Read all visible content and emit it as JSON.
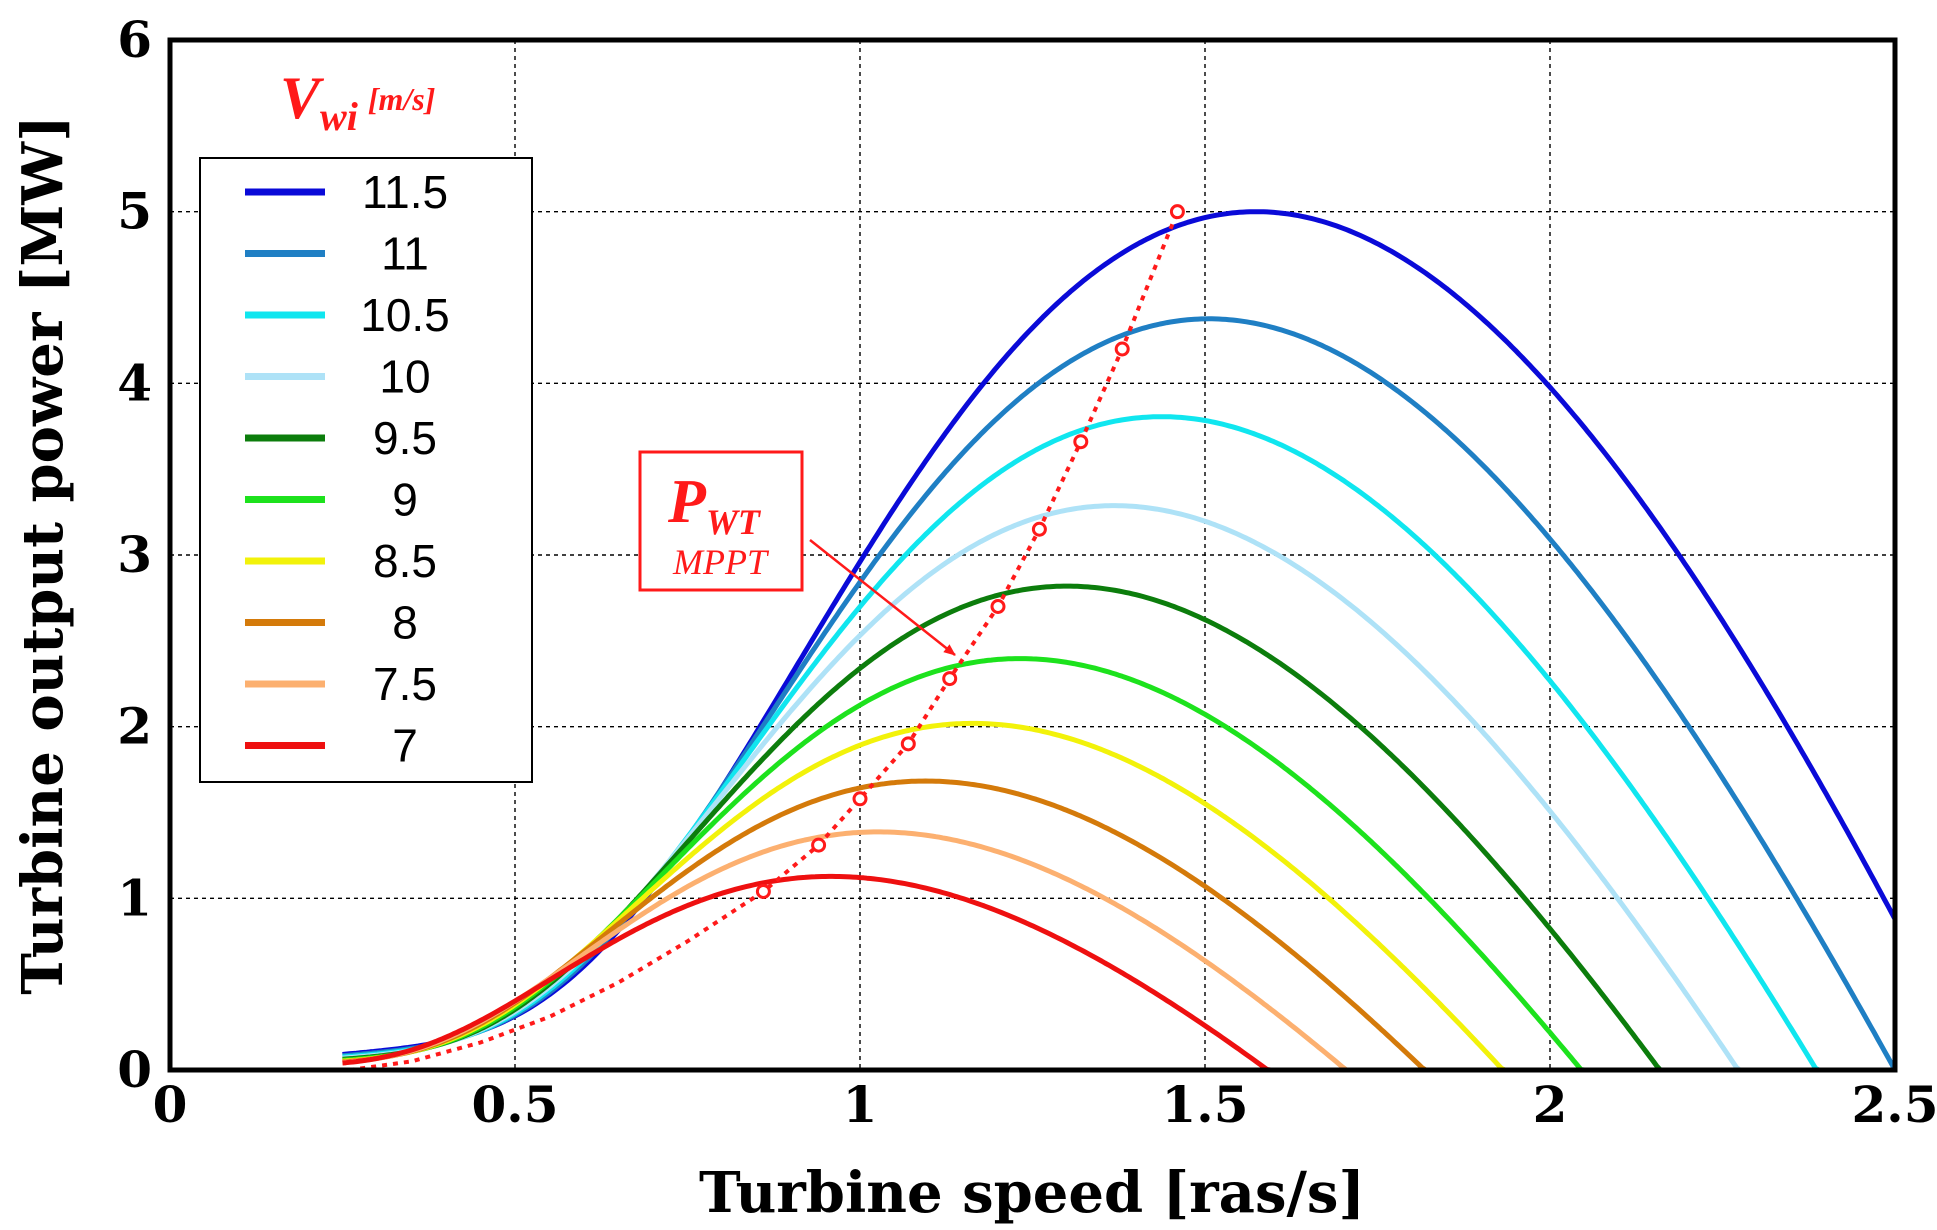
{
  "chart_data": {
    "type": "line",
    "title": "",
    "xlabel": "Turbine speed [ras/s]",
    "ylabel": "Turbine output power [MW]",
    "xlim": [
      0,
      2.5
    ],
    "ylim": [
      0,
      6
    ],
    "xticks": [
      0,
      0.5,
      1,
      1.5,
      2,
      2.5
    ],
    "yticks": [
      0,
      1,
      2,
      3,
      4,
      5,
      6
    ],
    "xtick_labels": [
      "0",
      "0.5",
      "1",
      "1.5",
      "2",
      "2.5"
    ],
    "ytick_labels": [
      "0",
      "1",
      "2",
      "3",
      "4",
      "5",
      "6"
    ],
    "grid": true,
    "legend_position": "top-left",
    "legend_title": {
      "main": "V",
      "sub": "wi",
      "unit": "[m/s]"
    },
    "series": [
      {
        "name": "11.5",
        "color": "#0a0ad8",
        "wind": 11.5
      },
      {
        "name": "11",
        "color": "#1f7fc4",
        "wind": 11
      },
      {
        "name": "10.5",
        "color": "#10e6ef",
        "wind": 10.5
      },
      {
        "name": "10",
        "color": "#aee2f7",
        "wind": 10
      },
      {
        "name": "9.5",
        "color": "#0c7d0c",
        "wind": 9.5
      },
      {
        "name": "9",
        "color": "#1de21d",
        "wind": 9
      },
      {
        "name": "8.5",
        "color": "#f2f20a",
        "wind": 8.5
      },
      {
        "name": "8",
        "color": "#d47a0a",
        "wind": 8
      },
      {
        "name": "7.5",
        "color": "#fcb070",
        "wind": 7.5
      },
      {
        "name": "7",
        "color": "#ee1010",
        "wind": 7
      }
    ],
    "mppt_curve": {
      "label_main": "P",
      "label_sub": "WT",
      "label_sub2": "MPPT",
      "color": "#ff1a1a",
      "x": [
        0.26,
        0.35,
        0.45,
        0.55,
        0.65,
        0.75,
        0.86,
        0.94,
        1.0,
        1.07,
        1.13,
        1.2,
        1.26,
        1.32,
        1.38,
        1.46
      ],
      "y": [
        0.0,
        0.05,
        0.16,
        0.31,
        0.51,
        0.75,
        1.04,
        1.31,
        1.58,
        1.9,
        2.28,
        2.7,
        3.15,
        3.66,
        4.2,
        5.0
      ],
      "markers_x": [
        0.86,
        0.94,
        1.0,
        1.07,
        1.13,
        1.2,
        1.26,
        1.32,
        1.38,
        1.46
      ],
      "markers_y": [
        1.04,
        1.31,
        1.58,
        1.9,
        2.28,
        2.7,
        3.15,
        3.66,
        4.2,
        5.0
      ]
    }
  }
}
